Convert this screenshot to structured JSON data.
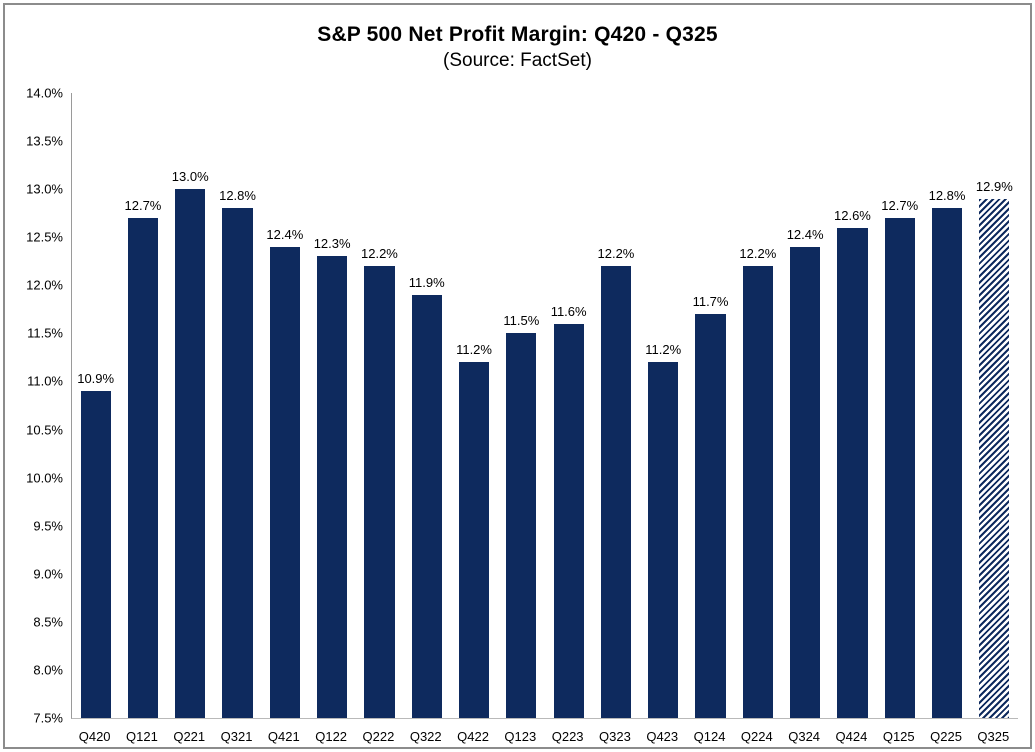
{
  "header": {
    "title": "S&P 500 Net Profit Margin: Q420 - Q325",
    "subtitle": "(Source: FactSet)"
  },
  "chart_data": {
    "type": "bar",
    "title": "S&P 500 Net Profit Margin: Q420 - Q325",
    "subtitle": "(Source: FactSet)",
    "xlabel": "",
    "ylabel": "",
    "categories": [
      "Q420",
      "Q121",
      "Q221",
      "Q321",
      "Q421",
      "Q122",
      "Q222",
      "Q322",
      "Q422",
      "Q123",
      "Q223",
      "Q323",
      "Q423",
      "Q124",
      "Q224",
      "Q324",
      "Q424",
      "Q125",
      "Q225",
      "Q325"
    ],
    "values": [
      10.9,
      12.7,
      13.0,
      12.8,
      12.4,
      12.3,
      12.2,
      11.9,
      11.2,
      11.5,
      11.6,
      12.2,
      11.2,
      11.7,
      12.2,
      12.4,
      12.6,
      12.7,
      12.8,
      12.9
    ],
    "value_labels": [
      "10.9%",
      "12.7%",
      "13.0%",
      "12.8%",
      "12.4%",
      "12.3%",
      "12.2%",
      "11.9%",
      "11.2%",
      "11.5%",
      "11.6%",
      "12.2%",
      "11.2%",
      "11.7%",
      "12.2%",
      "12.4%",
      "12.6%",
      "12.7%",
      "12.8%",
      "12.9%"
    ],
    "ylim": [
      7.5,
      14.0
    ],
    "ytick_step": 0.5,
    "ytick_labels": [
      "7.5%",
      "8.0%",
      "8.5%",
      "9.0%",
      "9.5%",
      "10.0%",
      "10.5%",
      "11.0%",
      "11.5%",
      "12.0%",
      "12.5%",
      "13.0%",
      "13.5%",
      "14.0%"
    ],
    "grid": false,
    "legend": "none",
    "hatched_categories": [
      "Q325"
    ],
    "bar_color": "#0e2a5e",
    "hatch_background": "#ffffff",
    "axis_color": "#9a9a9a",
    "frame_border_color": "#8c8c8c"
  }
}
